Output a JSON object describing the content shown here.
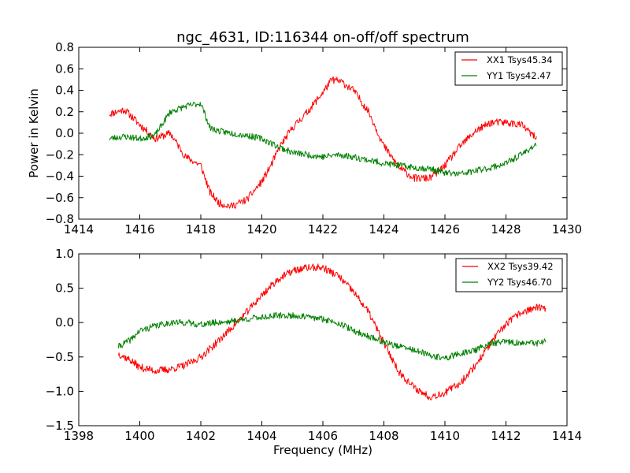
{
  "chart_data": [
    {
      "type": "line",
      "title": "ngc_4631, ID:116344 on-off/off spectrum",
      "xlabel": "",
      "ylabel": "Power in Kelvin",
      "xlim": [
        1414,
        1430
      ],
      "ylim": [
        -0.8,
        0.8
      ],
      "xticks": [
        "1414",
        "1416",
        "1418",
        "1420",
        "1422",
        "1424",
        "1426",
        "1428",
        "1430"
      ],
      "yticks": [
        "−0.8",
        "−0.6",
        "−0.4",
        "−0.2",
        "0.0",
        "0.2",
        "0.4",
        "0.6",
        "0.8"
      ],
      "legend_position": "top-right",
      "grid": false,
      "x_range": [
        1415.0,
        1429.0
      ],
      "series": [
        {
          "name": "XX1 Tsys45.34",
          "color": "#ff0000",
          "x": [
            1415.0,
            1415.5,
            1416.0,
            1416.5,
            1417.0,
            1417.5,
            1418.0,
            1418.3,
            1418.6,
            1419.0,
            1419.5,
            1420.0,
            1420.3,
            1420.6,
            1421.0,
            1421.5,
            1422.0,
            1422.3,
            1422.6,
            1423.0,
            1423.5,
            1424.0,
            1424.5,
            1425.0,
            1425.5,
            1426.0,
            1426.5,
            1427.0,
            1427.5,
            1428.0,
            1428.5,
            1429.0
          ],
          "values": [
            0.18,
            0.22,
            0.08,
            -0.05,
            0.0,
            -0.22,
            -0.3,
            -0.55,
            -0.65,
            -0.68,
            -0.62,
            -0.45,
            -0.3,
            -0.12,
            0.05,
            0.2,
            0.38,
            0.5,
            0.48,
            0.4,
            0.2,
            -0.12,
            -0.32,
            -0.42,
            -0.42,
            -0.3,
            -0.12,
            0.02,
            0.1,
            0.1,
            0.08,
            -0.05
          ]
        },
        {
          "name": "YY1 Tsys42.47",
          "color": "#008000",
          "x": [
            1415.0,
            1415.5,
            1416.0,
            1416.5,
            1417.0,
            1417.5,
            1418.0,
            1418.3,
            1418.6,
            1419.0,
            1419.5,
            1420.0,
            1420.5,
            1421.0,
            1421.5,
            1422.0,
            1422.5,
            1423.0,
            1423.5,
            1424.0,
            1424.5,
            1425.0,
            1425.5,
            1426.0,
            1426.5,
            1427.0,
            1427.5,
            1428.0,
            1428.5,
            1429.0
          ],
          "values": [
            -0.05,
            -0.03,
            -0.05,
            -0.02,
            0.2,
            0.25,
            0.28,
            0.05,
            0.02,
            0.0,
            -0.02,
            -0.05,
            -0.12,
            -0.18,
            -0.2,
            -0.22,
            -0.2,
            -0.22,
            -0.25,
            -0.28,
            -0.3,
            -0.32,
            -0.33,
            -0.37,
            -0.38,
            -0.35,
            -0.32,
            -0.28,
            -0.2,
            -0.1
          ]
        }
      ]
    },
    {
      "type": "line",
      "title": "",
      "xlabel": "Frequency (MHz)",
      "ylabel": "",
      "xlim": [
        1398,
        1414
      ],
      "ylim": [
        -1.5,
        1.0
      ],
      "xticks": [
        "1398",
        "1400",
        "1402",
        "1404",
        "1406",
        "1408",
        "1410",
        "1412",
        "1414"
      ],
      "yticks": [
        "−1.5",
        "−1.0",
        "−0.5",
        "0.0",
        "0.5",
        "1.0"
      ],
      "legend_position": "top-right",
      "grid": false,
      "x_range": [
        1399.3,
        1413.3
      ],
      "series": [
        {
          "name": "XX2 Tsys39.42",
          "color": "#ff0000",
          "x": [
            1399.3,
            1399.7,
            1400.0,
            1400.5,
            1401.0,
            1401.5,
            1402.0,
            1402.5,
            1403.0,
            1403.5,
            1404.0,
            1404.5,
            1405.0,
            1405.5,
            1406.0,
            1406.5,
            1407.0,
            1407.5,
            1408.0,
            1408.5,
            1409.0,
            1409.5,
            1410.0,
            1410.5,
            1411.0,
            1411.5,
            1412.0,
            1412.5,
            1413.0,
            1413.3
          ],
          "values": [
            -0.45,
            -0.55,
            -0.65,
            -0.7,
            -0.68,
            -0.62,
            -0.5,
            -0.3,
            -0.08,
            0.15,
            0.4,
            0.62,
            0.75,
            0.8,
            0.8,
            0.68,
            0.45,
            0.15,
            -0.3,
            -0.72,
            -0.95,
            -1.08,
            -1.02,
            -0.88,
            -0.62,
            -0.3,
            -0.02,
            0.15,
            0.22,
            0.2
          ]
        },
        {
          "name": "YY2 Tsys46.70",
          "color": "#008000",
          "x": [
            1399.3,
            1399.7,
            1400.0,
            1400.5,
            1401.0,
            1401.5,
            1402.0,
            1402.5,
            1403.0,
            1403.5,
            1404.0,
            1404.5,
            1405.0,
            1405.5,
            1406.0,
            1406.5,
            1407.0,
            1407.5,
            1408.0,
            1408.5,
            1409.0,
            1409.5,
            1410.0,
            1410.5,
            1411.0,
            1411.5,
            1412.0,
            1412.5,
            1413.0,
            1413.3
          ],
          "values": [
            -0.35,
            -0.25,
            -0.12,
            -0.05,
            0.0,
            0.0,
            -0.03,
            0.0,
            0.02,
            0.05,
            0.08,
            0.1,
            0.1,
            0.08,
            0.05,
            0.0,
            -0.12,
            -0.2,
            -0.28,
            -0.35,
            -0.4,
            -0.48,
            -0.52,
            -0.45,
            -0.4,
            -0.3,
            -0.28,
            -0.3,
            -0.3,
            -0.28
          ]
        }
      ]
    }
  ]
}
